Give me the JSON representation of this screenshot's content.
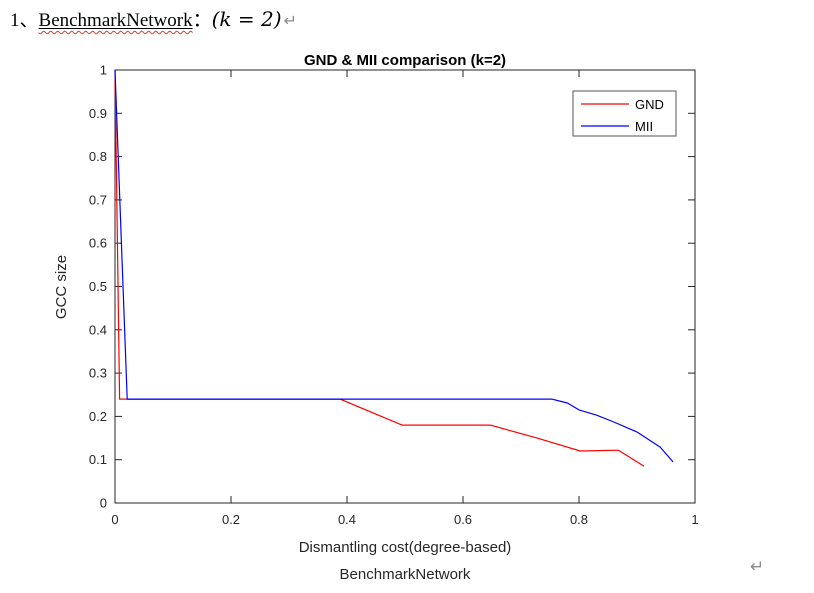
{
  "document": {
    "heading": {
      "number": "1、",
      "term": "BenchmarkNetwork",
      "colon": "：",
      "formula": "(k = 2)",
      "return_mark": "↵"
    },
    "page_end_return_mark": "↵"
  },
  "chart_data": {
    "type": "line",
    "title": "GND & MII comparison (k=2)",
    "xlabel": "Dismantling cost(degree-based)",
    "xlabel_line2": "BenchmarkNetwork",
    "ylabel": "GCC size",
    "xlim": [
      0,
      1
    ],
    "ylim": [
      0,
      1
    ],
    "xticks": [
      "0",
      "0.2",
      "0.4",
      "0.6",
      "0.8",
      "1"
    ],
    "yticks": [
      "0",
      "0.1",
      "0.2",
      "0.3",
      "0.4",
      "0.5",
      "0.6",
      "0.7",
      "0.8",
      "0.9",
      "1"
    ],
    "grid": false,
    "axis_color": "#262626",
    "legend": {
      "position": "top-right",
      "border_color": "#555555",
      "entries": [
        {
          "label": "GND",
          "color": "#ff0000"
        },
        {
          "label": "MII",
          "color": "#0000ff"
        }
      ]
    },
    "series": [
      {
        "name": "GND",
        "color": "#ff0000",
        "points": [
          [
            0,
            1
          ],
          [
            0.008,
            0.24
          ],
          [
            0.388,
            0.24
          ],
          [
            0.495,
            0.18
          ],
          [
            0.647,
            0.18
          ],
          [
            0.728,
            0.15
          ],
          [
            0.802,
            0.12
          ],
          [
            0.868,
            0.122
          ],
          [
            0.912,
            0.085
          ]
        ]
      },
      {
        "name": "MII",
        "color": "#0000ff",
        "points": [
          [
            0,
            1
          ],
          [
            0.021,
            0.24
          ],
          [
            0.753,
            0.24
          ],
          [
            0.78,
            0.231
          ],
          [
            0.8,
            0.215
          ],
          [
            0.83,
            0.203
          ],
          [
            0.86,
            0.187
          ],
          [
            0.9,
            0.164
          ],
          [
            0.94,
            0.129
          ],
          [
            0.962,
            0.095
          ]
        ]
      }
    ]
  }
}
